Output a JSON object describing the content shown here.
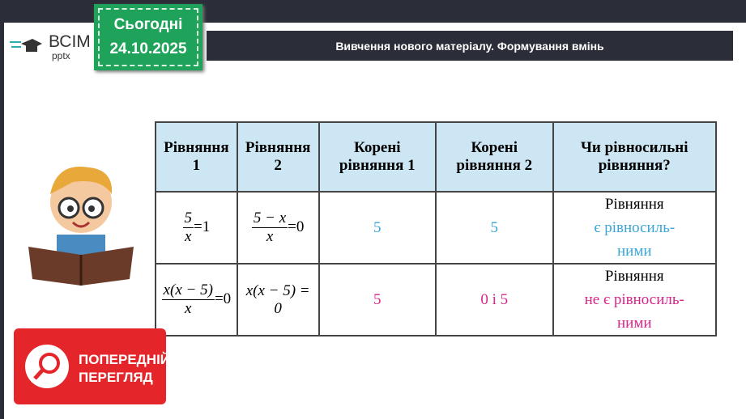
{
  "logo": {
    "line1": "ВСІМ",
    "line2": "pptx"
  },
  "badge": {
    "label": "Сьогодні",
    "date": "24.10.2025"
  },
  "title": "Вивчення нового матеріалу. Формування вмінь",
  "table": {
    "headers": [
      "Рівняння 1",
      "Рівняння 2",
      "Корені рівняння 1",
      "Корені рівняння 2",
      "Чи рівносильні рівняння?"
    ],
    "rows": [
      {
        "eq1_num": "5",
        "eq1_den": "x",
        "eq1_rhs": "=1",
        "eq2_num": "5 − x",
        "eq2_den": "x",
        "eq2_rhs": "=0",
        "roots1": "5",
        "roots2": "5",
        "answer_line1": "Рівняння",
        "answer_line2": "є рівносиль-",
        "answer_line3": "ними",
        "color": "#3aa5d8"
      },
      {
        "eq1_num": "x(x − 5)",
        "eq1_den": "x",
        "eq1_rhs": "=0",
        "eq2": "x(x − 5) = 0",
        "roots1": "5",
        "roots2": "0 і 5",
        "answer_line1": "Рівняння",
        "answer_line2": "не є рівносиль-",
        "answer_line3": "ними",
        "color": "#d9258a"
      }
    ]
  },
  "preview_button": {
    "line1": "ПОПЕРЕДНІЙ",
    "line2": "ПЕРЕГЛЯД",
    "icon": "search-icon"
  }
}
